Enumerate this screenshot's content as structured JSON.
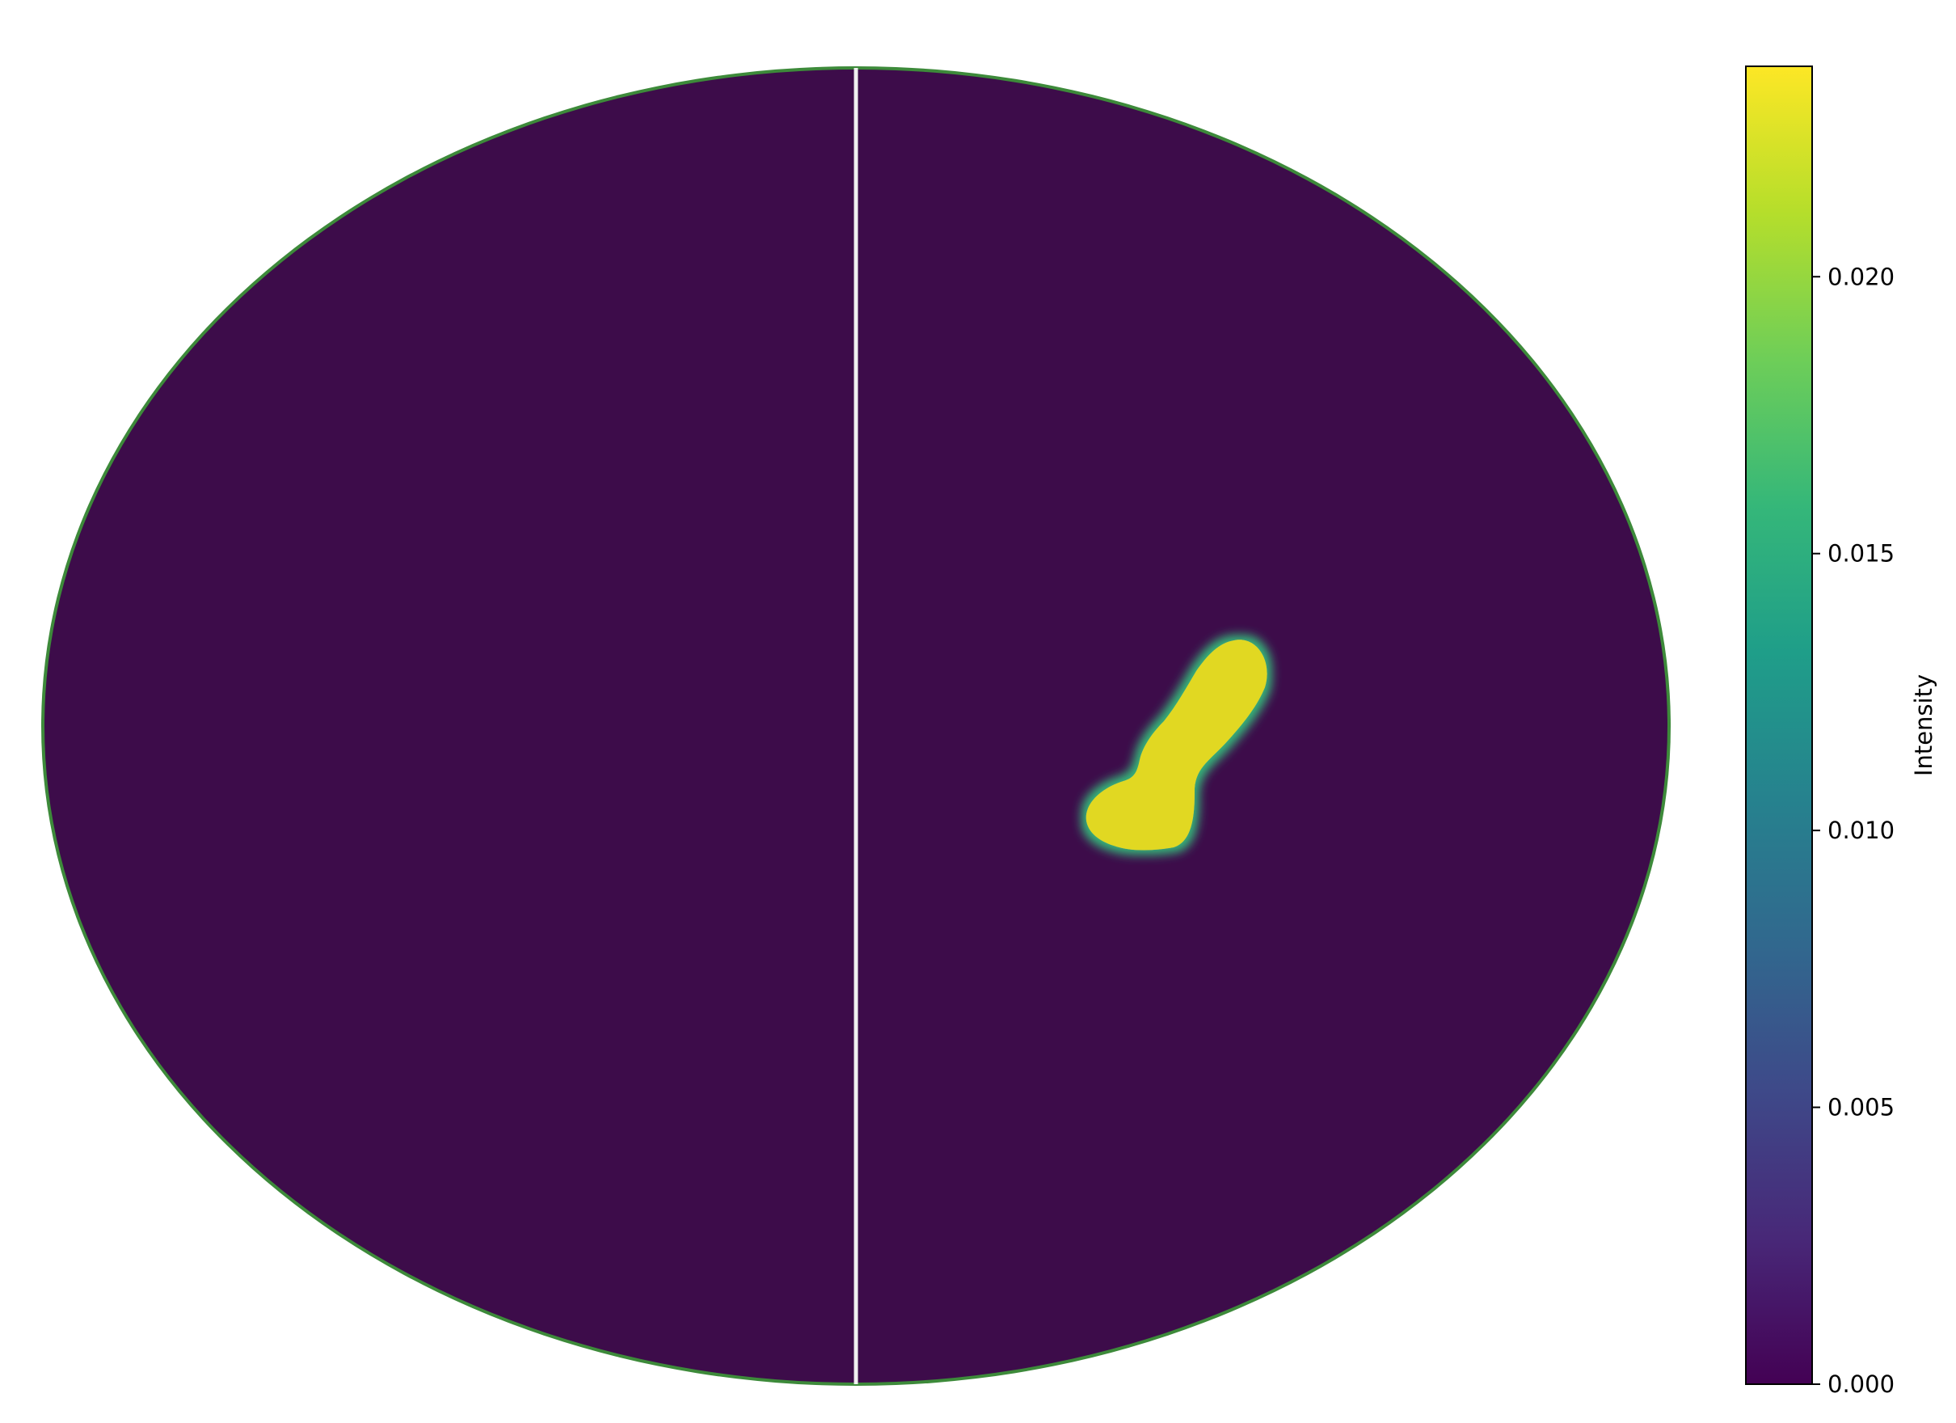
{
  "chart_data": {
    "type": "heatmap",
    "projection": "mollweide",
    "title": "",
    "grid": false,
    "colormap": "viridis",
    "colors": {
      "background_value": "#3d0c4a",
      "blob_value": "#e1d823",
      "meridian_line": "#f0f0f0"
    },
    "region": {
      "description_key": "single-bright-blob",
      "value": 0.0234,
      "background_value": 0.0
    },
    "colorbar": {
      "label": "Intensity",
      "vmin": 0.0,
      "vmax": 0.0238,
      "ticks": [
        {
          "value": 0.0,
          "label": "0.000"
        },
        {
          "value": 0.005,
          "label": "0.005"
        },
        {
          "value": 0.01,
          "label": "0.010"
        },
        {
          "value": 0.015,
          "label": "0.015"
        },
        {
          "value": 0.02,
          "label": "0.020"
        }
      ],
      "stops": [
        "#440154",
        "#482878",
        "#3e4989",
        "#31688e",
        "#26828e",
        "#1f9e89",
        "#35b779",
        "#6ece58",
        "#b5de2b",
        "#fde725"
      ]
    }
  }
}
